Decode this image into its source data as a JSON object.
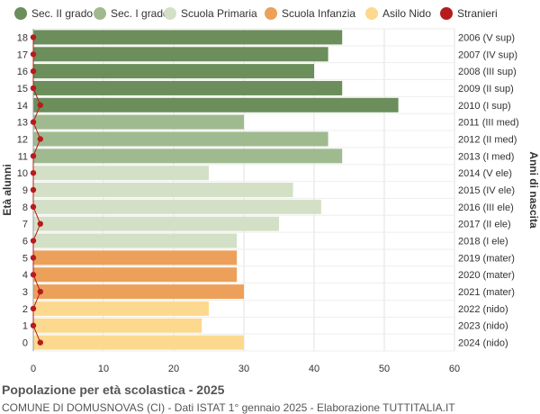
{
  "chart_data": {
    "type": "bar",
    "orientation": "horizontal",
    "title": "Popolazione per età scolastica - 2025",
    "subtitle": "COMUNE DI DOMUSNOVAS (CI) - Dati ISTAT 1° gennaio 2025 - Elaborazione TUTTITALIA.IT",
    "ylabel_left": "Età alunni",
    "ylabel_right": "Anni di nascita",
    "xlim": [
      0,
      60
    ],
    "xticks": [
      0,
      10,
      20,
      30,
      40,
      50,
      60
    ],
    "grid": true,
    "legend_position": "top",
    "legend": [
      {
        "name": "Sec. II grado",
        "color": "#6b8e5a"
      },
      {
        "name": "Sec. I grado",
        "color": "#9fba8f"
      },
      {
        "name": "Scuola Primaria",
        "color": "#d4e0c6"
      },
      {
        "name": "Scuola Infanzia",
        "color": "#eda05a"
      },
      {
        "name": "Asilo Nido",
        "color": "#fcd98e"
      },
      {
        "name": "Stranieri",
        "color": "#b71c1c"
      }
    ],
    "rows": [
      {
        "age": "18",
        "birth": "2006 (V sup)",
        "value": 44,
        "stranieri": 0,
        "group": 0
      },
      {
        "age": "17",
        "birth": "2007 (IV sup)",
        "value": 42,
        "stranieri": 0,
        "group": 0
      },
      {
        "age": "16",
        "birth": "2008 (III sup)",
        "value": 40,
        "stranieri": 0,
        "group": 0
      },
      {
        "age": "15",
        "birth": "2009 (II sup)",
        "value": 44,
        "stranieri": 0,
        "group": 0
      },
      {
        "age": "14",
        "birth": "2010 (I sup)",
        "value": 52,
        "stranieri": 1,
        "group": 0
      },
      {
        "age": "13",
        "birth": "2011 (III med)",
        "value": 30,
        "stranieri": 0,
        "group": 1
      },
      {
        "age": "12",
        "birth": "2012 (II med)",
        "value": 42,
        "stranieri": 1,
        "group": 1
      },
      {
        "age": "11",
        "birth": "2013 (I med)",
        "value": 44,
        "stranieri": 0,
        "group": 1
      },
      {
        "age": "10",
        "birth": "2014 (V ele)",
        "value": 25,
        "stranieri": 0,
        "group": 2
      },
      {
        "age": "9",
        "birth": "2015 (IV ele)",
        "value": 37,
        "stranieri": 0,
        "group": 2
      },
      {
        "age": "8",
        "birth": "2016 (III ele)",
        "value": 41,
        "stranieri": 0,
        "group": 2
      },
      {
        "age": "7",
        "birth": "2017 (II ele)",
        "value": 35,
        "stranieri": 1,
        "group": 2
      },
      {
        "age": "6",
        "birth": "2018 (I ele)",
        "value": 29,
        "stranieri": 0,
        "group": 2
      },
      {
        "age": "5",
        "birth": "2019 (mater)",
        "value": 29,
        "stranieri": 0,
        "group": 3
      },
      {
        "age": "4",
        "birth": "2020 (mater)",
        "value": 29,
        "stranieri": 0,
        "group": 3
      },
      {
        "age": "3",
        "birth": "2021 (mater)",
        "value": 30,
        "stranieri": 1,
        "group": 3
      },
      {
        "age": "2",
        "birth": "2022 (nido)",
        "value": 25,
        "stranieri": 0,
        "group": 4
      },
      {
        "age": "1",
        "birth": "2023 (nido)",
        "value": 24,
        "stranieri": 0,
        "group": 4
      },
      {
        "age": "0",
        "birth": "2024 (nido)",
        "value": 30,
        "stranieri": 1,
        "group": 4
      }
    ]
  }
}
